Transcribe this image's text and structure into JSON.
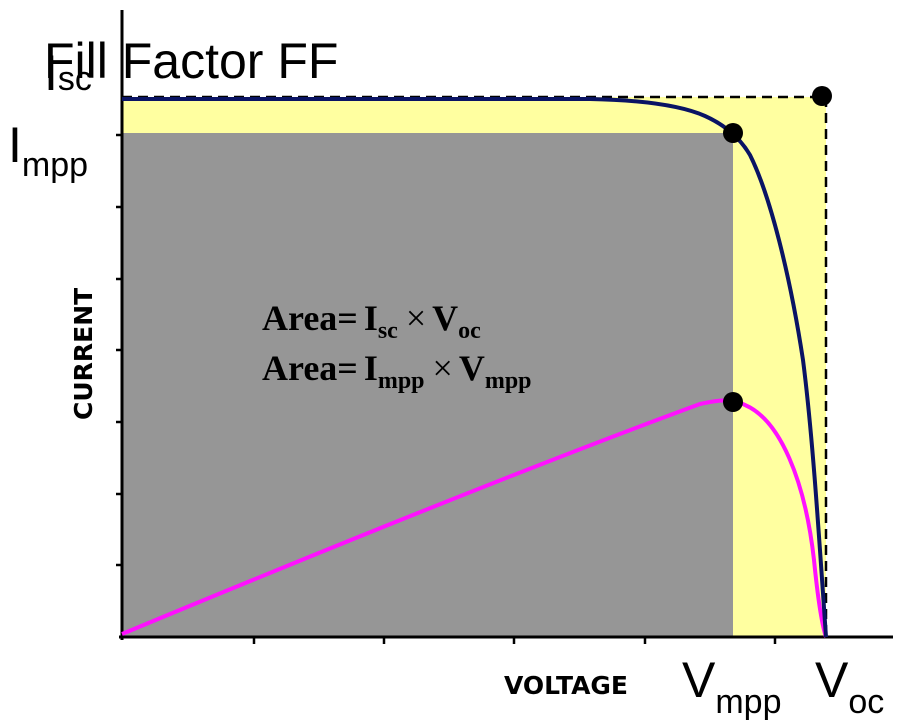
{
  "title": "Fill Factor FF",
  "axes": {
    "y_label": "CURRENT",
    "x_label": "VOLTAGE"
  },
  "markers": {
    "isc": {
      "base": "I",
      "sub": "sc"
    },
    "impp": {
      "base": "I",
      "sub": "mpp"
    },
    "vmpp": {
      "base": "V",
      "sub": "mpp"
    },
    "voc": {
      "base": "V",
      "sub": "oc"
    }
  },
  "annotations": {
    "line1": {
      "word": "Area=",
      "i": "I",
      "i_sub": "sc",
      "times": "×",
      "v": "V",
      "v_sub": "oc"
    },
    "line2": {
      "word": "Area=",
      "i": "I",
      "i_sub": "mpp",
      "times": "×",
      "v": "V",
      "v_sub": "mpp"
    }
  },
  "colors": {
    "iv_curve": "#0a1464",
    "power_curve": "#ff10ff",
    "ideal_area": "#ffffa0",
    "mpp_area": "#969696",
    "axis": "#000000"
  }
}
